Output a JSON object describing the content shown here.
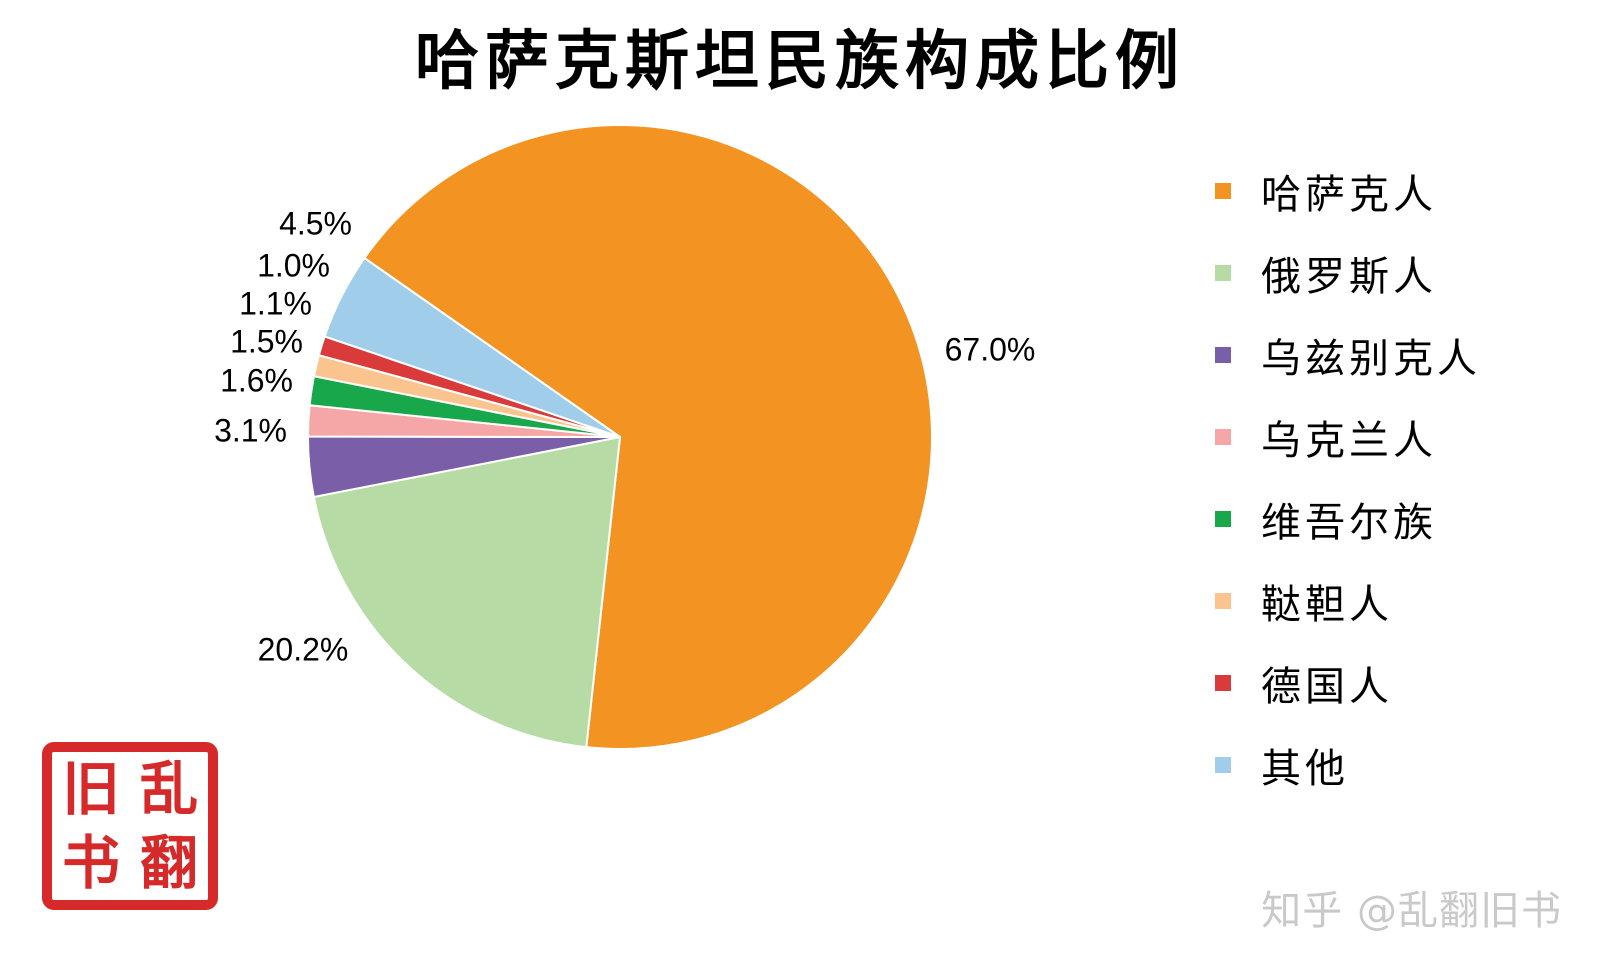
{
  "title": "哈萨克斯坦民族构成比例",
  "chart_data": {
    "type": "pie",
    "title": "哈萨克斯坦民族构成比例",
    "start_angle_deg": -55,
    "direction": "clockwise",
    "legend_position": "right",
    "slices": [
      {
        "label": "哈萨克人",
        "value": 67.0,
        "display": "67.0%",
        "color": "#F39322"
      },
      {
        "label": "俄罗斯人",
        "value": 20.2,
        "display": "20.2%",
        "color": "#B6DBA4"
      },
      {
        "label": "乌兹别克人",
        "value": 3.1,
        "display": "3.1%",
        "color": "#7A5EA8"
      },
      {
        "label": "乌克兰人",
        "value": 1.6,
        "display": "1.6%",
        "color": "#F4A7A6"
      },
      {
        "label": "维吾尔族",
        "value": 1.5,
        "display": "1.5%",
        "color": "#18A84B"
      },
      {
        "label": "鞑靼人",
        "value": 1.1,
        "display": "1.1%",
        "color": "#F9C48E"
      },
      {
        "label": "德国人",
        "value": 1.0,
        "display": "1.0%",
        "color": "#D93B3B"
      },
      {
        "label": "其他",
        "value": 4.5,
        "display": "4.5%",
        "color": "#9FCDEA"
      }
    ]
  },
  "seal": {
    "chars": [
      "乱",
      "旧",
      "翻",
      "书"
    ]
  },
  "watermark": "知乎 @乱翻旧书"
}
